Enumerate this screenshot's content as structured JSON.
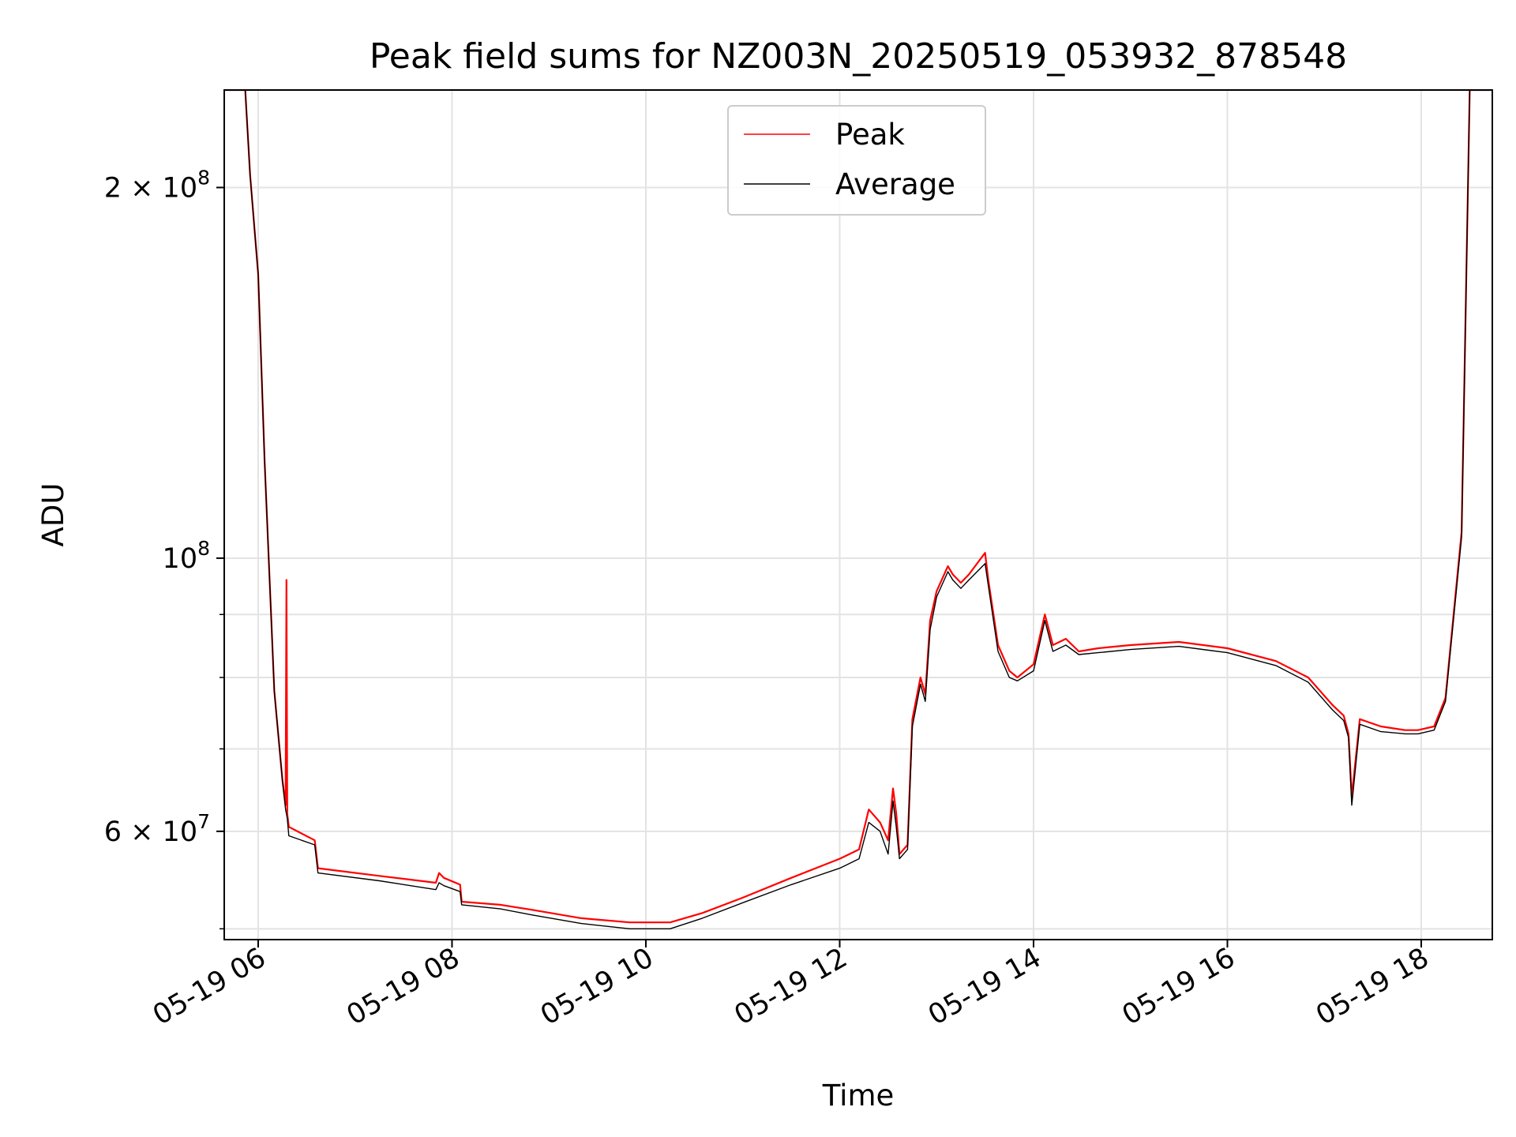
{
  "chart_data": {
    "type": "line",
    "title": "Peak field sums for NZ003N_20250519_053932_878548",
    "xlabel": "Time",
    "ylabel": "ADU",
    "x_scale": "time",
    "y_scale": "log",
    "xlim": [
      "2025-05-19 05:39",
      "2025-05-19 18:44"
    ],
    "ylim": [
      49000000,
      240000000
    ],
    "grid": true,
    "legend_position": "upper center",
    "x_ticks": [
      "05-19 06",
      "05-19 08",
      "05-19 10",
      "05-19 12",
      "05-19 14",
      "05-19 16",
      "05-19 18"
    ],
    "y_ticks": [
      {
        "value": 60000000,
        "label": "6 × 10^7",
        "mantissa": "6",
        "exp": "7"
      },
      {
        "value": 100000000,
        "label": "10^8",
        "mantissa": "",
        "exp": "8"
      },
      {
        "value": 200000000,
        "label": "2 × 10^8",
        "mantissa": "2",
        "exp": "8"
      }
    ],
    "series": [
      {
        "name": "Peak",
        "color": "#ff0000",
        "x": [
          "2025-05-19 05:40",
          "2025-05-19 05:52",
          "2025-05-19 05:55",
          "2025-05-19 06:00",
          "2025-05-19 06:04",
          "2025-05-19 06:10",
          "2025-05-19 06:15",
          "2025-05-19 06:17",
          "2025-05-19 06:17:30",
          "2025-05-19 06:18",
          "2025-05-19 06:19",
          "2025-05-19 06:35",
          "2025-05-19 06:37",
          "2025-05-19 07:15",
          "2025-05-19 07:50",
          "2025-05-19 07:52",
          "2025-05-19 07:55",
          "2025-05-19 08:05",
          "2025-05-19 08:06",
          "2025-05-19 08:30",
          "2025-05-19 08:50",
          "2025-05-19 09:20",
          "2025-05-19 09:50",
          "2025-05-19 10:15",
          "2025-05-19 10:35",
          "2025-05-19 11:00",
          "2025-05-19 11:30",
          "2025-05-19 12:00",
          "2025-05-19 12:12",
          "2025-05-19 12:18",
          "2025-05-19 12:25",
          "2025-05-19 12:30",
          "2025-05-19 12:33",
          "2025-05-19 12:35",
          "2025-05-19 12:37",
          "2025-05-19 12:42",
          "2025-05-19 12:45",
          "2025-05-19 12:50",
          "2025-05-19 12:53",
          "2025-05-19 12:56",
          "2025-05-19 13:00",
          "2025-05-19 13:07",
          "2025-05-19 13:10",
          "2025-05-19 13:15",
          "2025-05-19 13:20",
          "2025-05-19 13:30",
          "2025-05-19 13:32",
          "2025-05-19 13:38",
          "2025-05-19 13:45",
          "2025-05-19 13:50",
          "2025-05-19 14:00",
          "2025-05-19 14:07",
          "2025-05-19 14:12",
          "2025-05-19 14:20",
          "2025-05-19 14:28",
          "2025-05-19 14:40",
          "2025-05-19 15:00",
          "2025-05-19 15:30",
          "2025-05-19 16:00",
          "2025-05-19 16:30",
          "2025-05-19 16:50",
          "2025-05-19 17:05",
          "2025-05-19 17:12",
          "2025-05-19 17:15",
          "2025-05-19 17:17",
          "2025-05-19 17:22",
          "2025-05-19 17:35",
          "2025-05-19 17:50",
          "2025-05-19 17:58",
          "2025-05-19 18:08",
          "2025-05-19 18:15",
          "2025-05-19 18:25",
          "2025-05-19 18:30",
          "2025-05-19 18:43"
        ],
        "values": [
          240000000,
          240000000,
          205000000,
          170000000,
          120000000,
          78000000,
          66000000,
          63000000,
          96000000,
          62000000,
          60500000,
          59000000,
          56000000,
          55200000,
          54500000,
          55500000,
          55000000,
          54300000,
          52600000,
          52300000,
          51800000,
          51000000,
          50600000,
          50600000,
          51500000,
          53000000,
          55000000,
          57000000,
          58000000,
          62500000,
          61000000,
          59000000,
          65000000,
          62000000,
          57500000,
          58500000,
          74000000,
          80000000,
          77500000,
          89000000,
          94000000,
          98500000,
          97000000,
          95500000,
          97000000,
          101000000,
          96000000,
          85000000,
          81000000,
          80000000,
          82000000,
          90000000,
          85000000,
          86000000,
          84000000,
          84500000,
          85000000,
          85500000,
          84500000,
          82500000,
          80000000,
          76000000,
          74500000,
          72000000,
          64000000,
          74000000,
          73000000,
          72500000,
          72500000,
          73000000,
          77000000,
          105000000,
          240000000,
          240000000
        ]
      },
      {
        "name": "Average",
        "color": "#000000",
        "x": [
          "2025-05-19 05:40",
          "2025-05-19 05:52",
          "2025-05-19 05:55",
          "2025-05-19 06:00",
          "2025-05-19 06:04",
          "2025-05-19 06:10",
          "2025-05-19 06:15",
          "2025-05-19 06:17",
          "2025-05-19 06:18",
          "2025-05-19 06:19",
          "2025-05-19 06:35",
          "2025-05-19 06:37",
          "2025-05-19 07:15",
          "2025-05-19 07:50",
          "2025-05-19 07:52",
          "2025-05-19 07:55",
          "2025-05-19 08:05",
          "2025-05-19 08:06",
          "2025-05-19 08:30",
          "2025-05-19 08:50",
          "2025-05-19 09:20",
          "2025-05-19 09:50",
          "2025-05-19 10:15",
          "2025-05-19 10:35",
          "2025-05-19 11:00",
          "2025-05-19 11:30",
          "2025-05-19 12:00",
          "2025-05-19 12:12",
          "2025-05-19 12:18",
          "2025-05-19 12:25",
          "2025-05-19 12:30",
          "2025-05-19 12:33",
          "2025-05-19 12:35",
          "2025-05-19 12:37",
          "2025-05-19 12:42",
          "2025-05-19 12:45",
          "2025-05-19 12:50",
          "2025-05-19 12:53",
          "2025-05-19 12:56",
          "2025-05-19 13:00",
          "2025-05-19 13:07",
          "2025-05-19 13:10",
          "2025-05-19 13:15",
          "2025-05-19 13:20",
          "2025-05-19 13:30",
          "2025-05-19 13:32",
          "2025-05-19 13:38",
          "2025-05-19 13:45",
          "2025-05-19 13:50",
          "2025-05-19 14:00",
          "2025-05-19 14:07",
          "2025-05-19 14:12",
          "2025-05-19 14:20",
          "2025-05-19 14:28",
          "2025-05-19 14:40",
          "2025-05-19 15:00",
          "2025-05-19 15:30",
          "2025-05-19 16:00",
          "2025-05-19 16:30",
          "2025-05-19 16:50",
          "2025-05-19 17:05",
          "2025-05-19 17:12",
          "2025-05-19 17:15",
          "2025-05-19 17:17",
          "2025-05-19 17:22",
          "2025-05-19 17:35",
          "2025-05-19 17:50",
          "2025-05-19 17:58",
          "2025-05-19 18:08",
          "2025-05-19 18:15",
          "2025-05-19 18:25",
          "2025-05-19 18:30",
          "2025-05-19 18:43"
        ],
        "values": [
          240000000,
          240000000,
          205000000,
          170000000,
          120000000,
          78000000,
          66000000,
          62500000,
          61500000,
          59500000,
          58500000,
          55500000,
          54700000,
          53800000,
          54500000,
          54200000,
          53600000,
          52300000,
          51900000,
          51300000,
          50500000,
          50000000,
          50000000,
          51000000,
          52500000,
          54300000,
          56000000,
          57000000,
          61000000,
          60000000,
          57500000,
          63500000,
          60500000,
          57000000,
          58000000,
          73000000,
          79000000,
          76500000,
          87500000,
          93000000,
          97500000,
          96000000,
          94500000,
          96000000,
          99000000,
          95000000,
          84000000,
          80000000,
          79500000,
          81000000,
          89000000,
          84000000,
          85000000,
          83500000,
          83800000,
          84300000,
          84800000,
          83800000,
          81800000,
          79300000,
          75300000,
          73800000,
          71500000,
          63000000,
          73300000,
          72300000,
          72000000,
          72000000,
          72500000,
          76500000,
          104000000,
          240000000,
          240000000
        ]
      }
    ]
  }
}
